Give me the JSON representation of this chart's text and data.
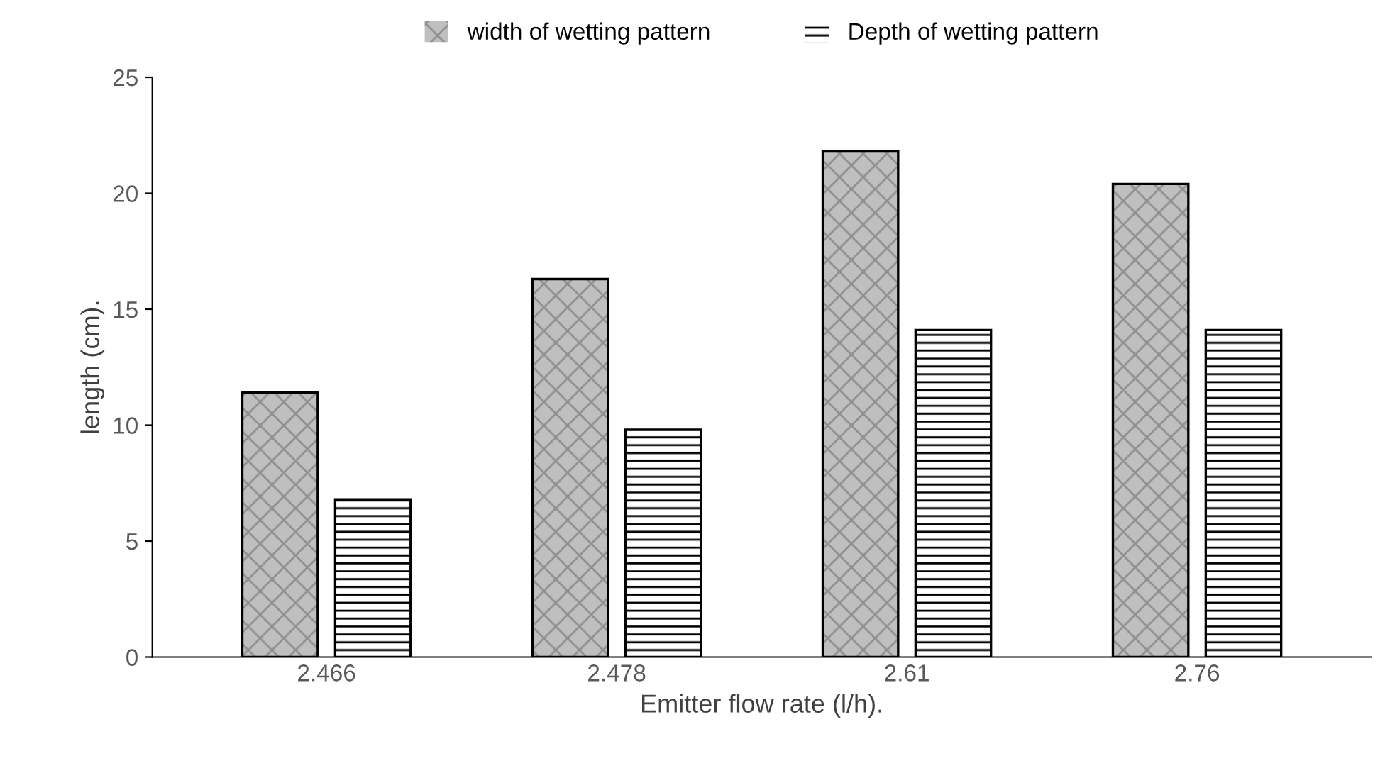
{
  "chart_data": {
    "type": "bar",
    "xlabel": "Emitter flow rate (l/h).",
    "ylabel": "length (cm).",
    "categories": [
      "2.466",
      "2.478",
      "2.61",
      "2.76"
    ],
    "series": [
      {
        "name": "width of wetting pattern",
        "color": "#bfbfbf",
        "values": [
          11.4,
          16.3,
          21.8,
          20.4
        ]
      },
      {
        "name": "Depth of wetting pattern",
        "color": "#000000",
        "values": [
          6.8,
          9.8,
          14.1,
          14.1
        ]
      }
    ],
    "ylim": [
      0,
      25
    ],
    "yticks": [
      0,
      5,
      10,
      15,
      20,
      25
    ],
    "grid": false,
    "legend": "top"
  }
}
